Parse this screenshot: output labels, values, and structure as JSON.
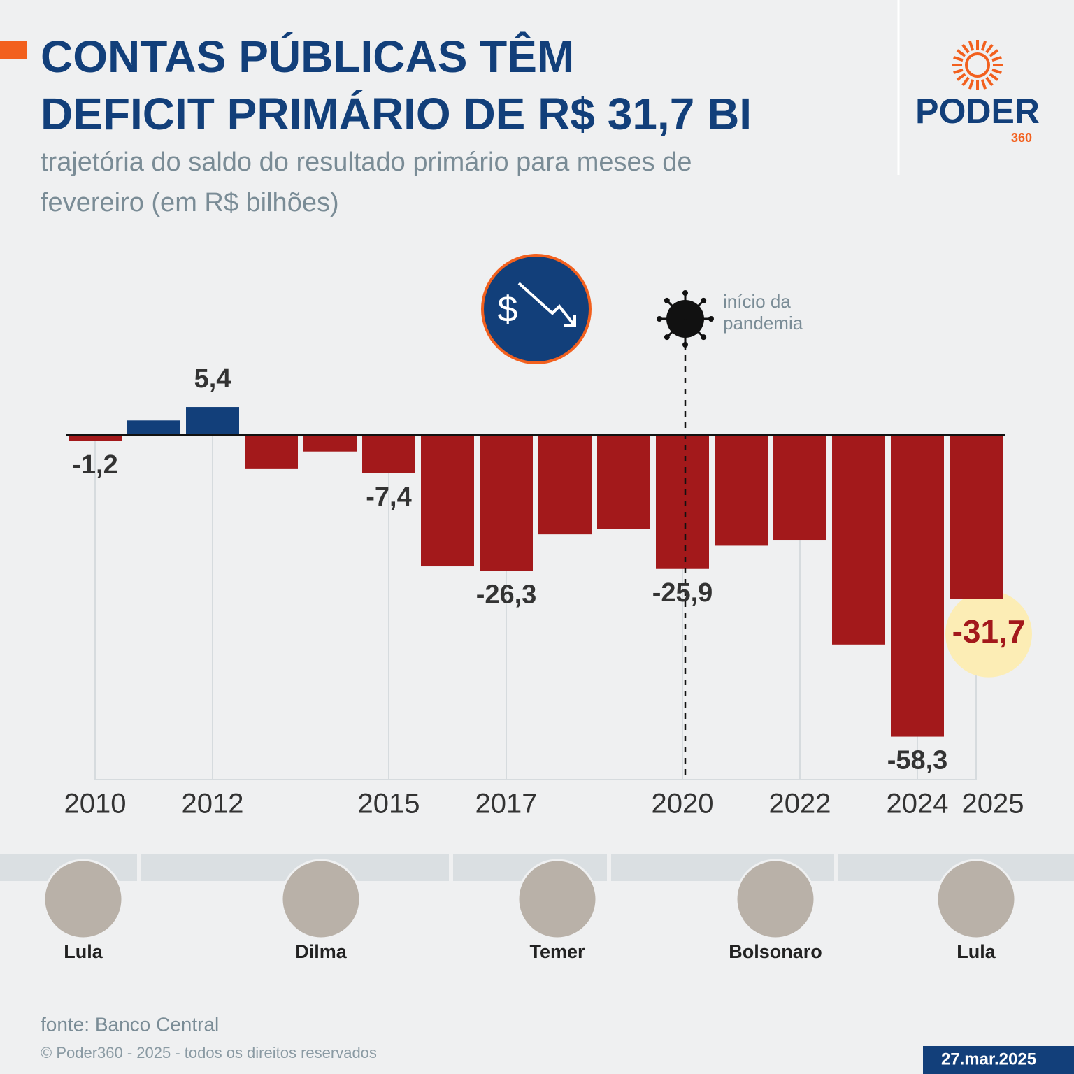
{
  "header": {
    "title_lines": [
      "CONTAS PÚBLICAS TÊM",
      "DEFICIT PRIMÁRIO DE R$ 31,7 BI"
    ],
    "subtitle_lines": [
      "trajetória do saldo do resultado primário para meses de",
      "fevereiro (em R$ bilhões)"
    ],
    "logo": "PODER",
    "logo_sub": "360"
  },
  "chart_data": {
    "type": "bar",
    "categories": [
      "2010",
      null,
      "2012",
      null,
      null,
      "2015",
      null,
      "2017",
      null,
      null,
      "2020",
      null,
      "2022",
      null,
      "2024",
      "2025"
    ],
    "values": [
      -1.2,
      2.8,
      5.4,
      -6.6,
      -3.2,
      -7.4,
      -25.4,
      -26.3,
      -19.2,
      -18.2,
      -25.9,
      -21.4,
      -20.4,
      -40.5,
      -58.3,
      -31.7
    ],
    "value_labels": [
      "-1,2",
      null,
      "5,4",
      null,
      null,
      "-7,4",
      null,
      "-26,3",
      null,
      null,
      "-25,9",
      null,
      null,
      null,
      "-58,3",
      "-31,7"
    ],
    "color_positive": "#123f7a",
    "color_negative": "#a3191b",
    "ylim": [
      -66.6,
      11
    ],
    "highlight": "2025",
    "annotation": {
      "lines": [
        "início da",
        "pandemia"
      ],
      "category": "2020"
    }
  },
  "presidents": [
    "Lula",
    "Dilma",
    "Temer",
    "Bolsonaro",
    "Lula"
  ],
  "footer": {
    "source": "fonte: Banco Central",
    "copyright": "© Poder360 - 2025 - todos os direitos reservados",
    "date": "27.mar.2025"
  }
}
